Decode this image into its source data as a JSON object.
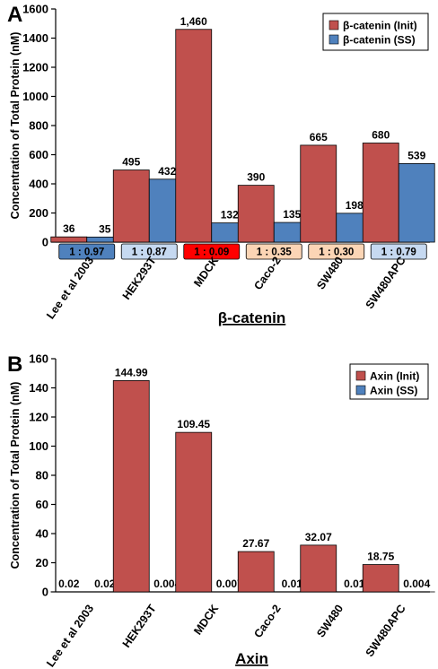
{
  "chart_data": [
    {
      "panel": "A",
      "type": "bar",
      "categories": [
        "Lee et al 2003",
        "HEK293T",
        "MDCK",
        "Caco-2",
        "SW480",
        "SW480APC"
      ],
      "series": [
        {
          "name": "β-catenin (Init)",
          "values": [
            36,
            495,
            1460,
            390,
            665,
            680
          ],
          "labels": [
            "36",
            "495",
            "1,460",
            "390",
            "665",
            "680"
          ],
          "color": "#c0504d"
        },
        {
          "name": "β-catenin (SS)",
          "values": [
            35,
            432,
            132,
            135,
            198,
            539
          ],
          "labels": [
            "35",
            "432",
            "132",
            "135",
            "198",
            "539"
          ],
          "color": "#4f81bd"
        }
      ],
      "ratios": [
        {
          "text": "1 : 0.97",
          "color": "#4f81bd"
        },
        {
          "text": "1 : 0.87",
          "color": "#c6d9f1"
        },
        {
          "text": "1 : 0.09",
          "color": "#ff0000"
        },
        {
          "text": "1 : 0.35",
          "color": "#fbd5b5"
        },
        {
          "text": "1 : 0.30",
          "color": "#fbd5b5"
        },
        {
          "text": "1 : 0.79",
          "color": "#c6d9f1"
        }
      ],
      "xlabel": "β-catenin",
      "ylabel": "Concentration of Total Protein (nM)",
      "ylim": [
        0,
        1600
      ],
      "yticks": [
        0,
        200,
        400,
        600,
        800,
        1000,
        1200,
        1400,
        1600
      ],
      "legend_position": "top-right",
      "grid": false
    },
    {
      "panel": "B",
      "type": "bar",
      "categories": [
        "Lee et al 2003",
        "HEK293T",
        "MDCK",
        "Caco-2",
        "SW480",
        "SW480APC"
      ],
      "series": [
        {
          "name": "Axin (Init)",
          "values": [
            0.02,
            144.99,
            109.45,
            27.67,
            32.07,
            18.75
          ],
          "labels": [
            "0.02",
            "144.99",
            "109.45",
            "27.67",
            "32.07",
            "18.75"
          ],
          "color": "#c0504d"
        },
        {
          "name": "Axin (SS)",
          "values": [
            0.02,
            0.004,
            0.007,
            0.01,
            0.01,
            0.004
          ],
          "labels": [
            "0.02",
            "0.004",
            "0.007",
            "0.01",
            "0.01",
            "0.004"
          ],
          "color": "#4f81bd"
        }
      ],
      "xlabel": "Axin",
      "ylabel": "Concentration of Total Protein (nM)",
      "ylim": [
        0,
        160
      ],
      "yticks": [
        0,
        20,
        40,
        60,
        80,
        100,
        120,
        140,
        160
      ],
      "legend_position": "top-right",
      "grid": false
    }
  ]
}
